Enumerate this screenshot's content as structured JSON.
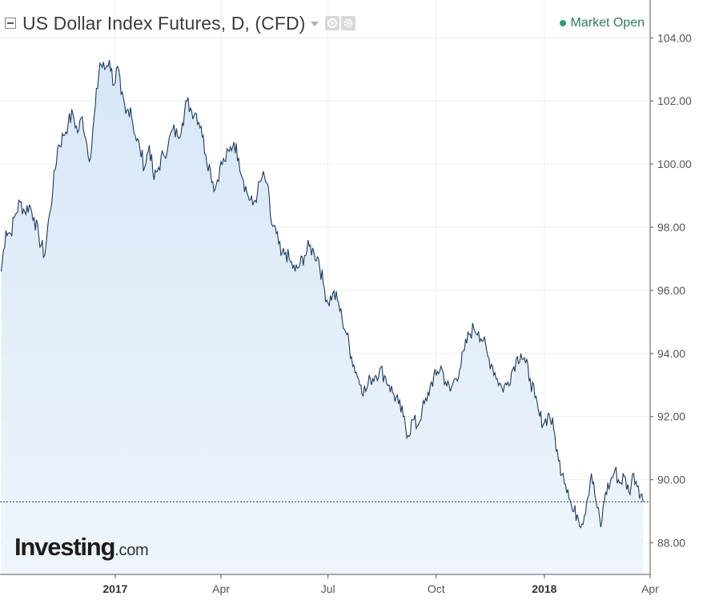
{
  "header": {
    "title": "US Dollar Index Futures, D, (CFD)",
    "status": "Market Open"
  },
  "colors": {
    "line": "#1f3a5c",
    "area_top": "#d7e6f6",
    "area_bottom": "#eef5fc",
    "status": "#2f9e6b",
    "grid": "#eeeeee",
    "axis": "#555555"
  },
  "icons": [
    "collapse-icon",
    "caret-down-icon",
    "eye-icon",
    "gear-icon",
    "status-dot-icon"
  ],
  "logo": {
    "main": "Investing",
    "suffix": ".com"
  },
  "chart_data": {
    "type": "area",
    "title": "US Dollar Index Futures, D, (CFD)",
    "y_axis_position": "right",
    "ylim": [
      87.0,
      105.2
    ],
    "grid": true,
    "y_ticks": [
      {
        "value": 88,
        "label": "88.00"
      },
      {
        "value": 90,
        "label": "90.00"
      },
      {
        "value": 92,
        "label": "92.00"
      },
      {
        "value": 94,
        "label": "94.00"
      },
      {
        "value": 96,
        "label": "96.00"
      },
      {
        "value": 98,
        "label": "98.00"
      },
      {
        "value": 100,
        "label": "100.00"
      },
      {
        "value": 102,
        "label": "102.00"
      },
      {
        "value": 104,
        "label": "104.00"
      }
    ],
    "x_ticks": [
      {
        "date": "2017-01-01",
        "label": "2017",
        "bold": true
      },
      {
        "date": "2017-04-01",
        "label": "Apr",
        "bold": false
      },
      {
        "date": "2017-07-01",
        "label": "Jul",
        "bold": false
      },
      {
        "date": "2017-10-01",
        "label": "Oct",
        "bold": false
      },
      {
        "date": "2018-01-01",
        "label": "2018",
        "bold": true
      },
      {
        "date": "2018-04-01",
        "label": "Apr",
        "bold": false
      }
    ],
    "xlim": [
      "2016-09-25",
      "2018-04-01"
    ],
    "last_value": 89.3,
    "series": [
      {
        "points": [
          [
            "2016-09-26",
            96.6
          ],
          [
            "2016-09-30",
            97.9
          ],
          [
            "2016-10-04",
            97.8
          ],
          [
            "2016-10-08",
            98.4
          ],
          [
            "2016-10-12",
            98.8
          ],
          [
            "2016-10-16",
            98.5
          ],
          [
            "2016-10-20",
            98.7
          ],
          [
            "2016-10-24",
            98.3
          ],
          [
            "2016-10-28",
            97.7
          ],
          [
            "2016-11-02",
            97.1
          ],
          [
            "2016-11-06",
            98.4
          ],
          [
            "2016-11-09",
            99.2
          ],
          [
            "2016-11-13",
            100.5
          ],
          [
            "2016-11-18",
            100.9
          ],
          [
            "2016-11-22",
            101.3
          ],
          [
            "2016-11-26",
            101.6
          ],
          [
            "2016-11-30",
            101.0
          ],
          [
            "2016-12-04",
            101.5
          ],
          [
            "2016-12-08",
            100.6
          ],
          [
            "2016-12-11",
            100.2
          ],
          [
            "2016-12-15",
            101.8
          ],
          [
            "2016-12-19",
            103.2
          ],
          [
            "2016-12-23",
            103.0
          ],
          [
            "2016-12-27",
            103.3
          ],
          [
            "2016-12-31",
            102.5
          ],
          [
            "2017-01-03",
            103.1
          ],
          [
            "2017-01-06",
            102.2
          ],
          [
            "2017-01-10",
            101.6
          ],
          [
            "2017-01-14",
            101.8
          ],
          [
            "2017-01-18",
            100.9
          ],
          [
            "2017-01-22",
            100.5
          ],
          [
            "2017-01-26",
            99.9
          ],
          [
            "2017-01-30",
            100.6
          ],
          [
            "2017-02-03",
            99.5
          ],
          [
            "2017-02-07",
            99.9
          ],
          [
            "2017-02-11",
            100.3
          ],
          [
            "2017-02-15",
            100.6
          ],
          [
            "2017-02-19",
            101.1
          ],
          [
            "2017-02-23",
            100.9
          ],
          [
            "2017-02-27",
            101.3
          ],
          [
            "2017-03-03",
            102.0
          ],
          [
            "2017-03-07",
            101.7
          ],
          [
            "2017-03-11",
            101.6
          ],
          [
            "2017-03-15",
            101.2
          ],
          [
            "2017-03-19",
            100.3
          ],
          [
            "2017-03-23",
            99.8
          ],
          [
            "2017-03-27",
            99.2
          ],
          [
            "2017-03-31",
            99.9
          ],
          [
            "2017-04-04",
            100.1
          ],
          [
            "2017-04-08",
            100.4
          ],
          [
            "2017-04-12",
            100.7
          ],
          [
            "2017-04-16",
            100.2
          ],
          [
            "2017-04-20",
            99.5
          ],
          [
            "2017-04-24",
            99.0
          ],
          [
            "2017-04-28",
            98.7
          ],
          [
            "2017-05-02",
            99.1
          ],
          [
            "2017-05-06",
            99.6
          ],
          [
            "2017-05-10",
            99.4
          ],
          [
            "2017-05-14",
            98.1
          ],
          [
            "2017-05-18",
            97.8
          ],
          [
            "2017-05-22",
            97.1
          ],
          [
            "2017-05-26",
            97.2
          ],
          [
            "2017-05-30",
            96.9
          ],
          [
            "2017-06-03",
            96.6
          ],
          [
            "2017-06-07",
            96.8
          ],
          [
            "2017-06-11",
            97.1
          ],
          [
            "2017-06-15",
            97.4
          ],
          [
            "2017-06-19",
            97.2
          ],
          [
            "2017-06-23",
            97.0
          ],
          [
            "2017-06-27",
            96.2
          ],
          [
            "2017-07-01",
            95.6
          ],
          [
            "2017-07-05",
            95.9
          ],
          [
            "2017-07-09",
            95.7
          ],
          [
            "2017-07-13",
            95.1
          ],
          [
            "2017-07-17",
            94.6
          ],
          [
            "2017-07-21",
            93.9
          ],
          [
            "2017-07-25",
            93.4
          ],
          [
            "2017-07-29",
            93.0
          ],
          [
            "2017-08-02",
            92.8
          ],
          [
            "2017-08-06",
            93.2
          ],
          [
            "2017-08-10",
            93.3
          ],
          [
            "2017-08-14",
            93.5
          ],
          [
            "2017-08-18",
            93.3
          ],
          [
            "2017-08-22",
            93.0
          ],
          [
            "2017-08-26",
            92.7
          ],
          [
            "2017-08-30",
            92.4
          ],
          [
            "2017-09-03",
            92.0
          ],
          [
            "2017-09-07",
            91.4
          ],
          [
            "2017-09-11",
            91.9
          ],
          [
            "2017-09-15",
            91.7
          ],
          [
            "2017-09-19",
            92.2
          ],
          [
            "2017-09-23",
            92.5
          ],
          [
            "2017-09-27",
            93.1
          ],
          [
            "2017-10-01",
            93.3
          ],
          [
            "2017-10-05",
            93.6
          ],
          [
            "2017-10-09",
            93.1
          ],
          [
            "2017-10-13",
            92.8
          ],
          [
            "2017-10-17",
            93.2
          ],
          [
            "2017-10-21",
            93.5
          ],
          [
            "2017-10-25",
            94.1
          ],
          [
            "2017-10-29",
            94.6
          ],
          [
            "2017-11-02",
            94.8
          ],
          [
            "2017-11-06",
            94.7
          ],
          [
            "2017-11-10",
            94.4
          ],
          [
            "2017-11-14",
            93.9
          ],
          [
            "2017-11-18",
            93.6
          ],
          [
            "2017-11-22",
            93.2
          ],
          [
            "2017-11-26",
            92.9
          ],
          [
            "2017-11-30",
            93.0
          ],
          [
            "2017-12-04",
            93.4
          ],
          [
            "2017-12-08",
            93.8
          ],
          [
            "2017-12-12",
            94.0
          ],
          [
            "2017-12-16",
            93.7
          ],
          [
            "2017-12-20",
            93.2
          ],
          [
            "2017-12-24",
            92.6
          ],
          [
            "2017-12-28",
            92.0
          ],
          [
            "2018-01-01",
            91.8
          ],
          [
            "2018-01-05",
            92.1
          ],
          [
            "2018-01-09",
            91.6
          ],
          [
            "2018-01-13",
            90.6
          ],
          [
            "2018-01-17",
            90.2
          ],
          [
            "2018-01-21",
            89.7
          ],
          [
            "2018-01-25",
            89.0
          ],
          [
            "2018-01-29",
            88.9
          ],
          [
            "2018-02-02",
            88.6
          ],
          [
            "2018-02-06",
            89.3
          ],
          [
            "2018-02-10",
            90.2
          ],
          [
            "2018-02-14",
            89.3
          ],
          [
            "2018-02-18",
            88.5
          ],
          [
            "2018-02-22",
            89.6
          ],
          [
            "2018-02-26",
            89.9
          ],
          [
            "2018-03-02",
            90.3
          ],
          [
            "2018-03-06",
            89.9
          ],
          [
            "2018-03-10",
            90.1
          ],
          [
            "2018-03-14",
            89.6
          ],
          [
            "2018-03-18",
            90.2
          ],
          [
            "2018-03-22",
            89.8
          ],
          [
            "2018-03-26",
            89.3
          ]
        ]
      }
    ]
  }
}
